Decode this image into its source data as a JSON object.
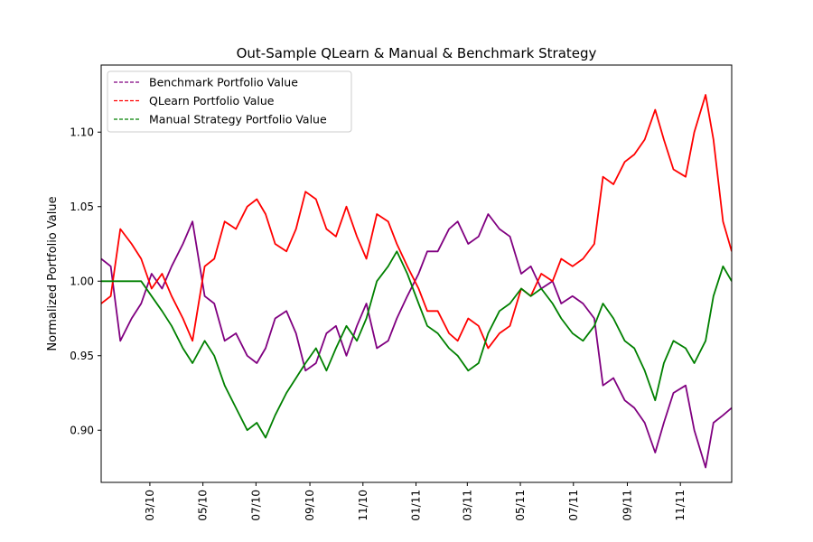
{
  "chart_data": {
    "type": "line",
    "title": "Out-Sample QLearn & Manual & Benchmark Strategy",
    "xlabel": "",
    "ylabel": "Normalized Portfolio Value",
    "xlim": [
      "2010-01-04",
      "2011-12-30"
    ],
    "ylim": [
      0.865,
      1.145
    ],
    "x_ticks": [
      "2010-03-01",
      "2010-05-01",
      "2010-07-01",
      "2010-09-01",
      "2010-11-01",
      "2011-01-01",
      "2011-03-01",
      "2011-05-01",
      "2011-07-01",
      "2011-09-01",
      "2011-11-01"
    ],
    "x_tick_labels": [
      "03/10",
      "05/10",
      "07/10",
      "09/10",
      "11/10",
      "01/11",
      "03/11",
      "05/11",
      "07/11",
      "09/11",
      "11/11"
    ],
    "y_ticks": [
      0.9,
      0.95,
      1.0,
      1.05,
      1.1
    ],
    "y_tick_labels": [
      "0.90",
      "0.95",
      "1.00",
      "1.05",
      "1.10"
    ],
    "grid": false,
    "legend_position": "top-left",
    "series": [
      {
        "name": "Benchmark Portfolio Value",
        "color": "#800080",
        "legend_style": "dashed",
        "points": [
          [
            "2010-01-04",
            1.015
          ],
          [
            "2010-01-15",
            1.01
          ],
          [
            "2010-01-26",
            0.96
          ],
          [
            "2010-02-08",
            0.975
          ],
          [
            "2010-02-19",
            0.985
          ],
          [
            "2010-03-03",
            1.005
          ],
          [
            "2010-03-15",
            0.995
          ],
          [
            "2010-03-26",
            1.01
          ],
          [
            "2010-04-08",
            1.025
          ],
          [
            "2010-04-19",
            1.04
          ],
          [
            "2010-05-03",
            0.99
          ],
          [
            "2010-05-14",
            0.985
          ],
          [
            "2010-05-26",
            0.96
          ],
          [
            "2010-06-08",
            0.965
          ],
          [
            "2010-06-21",
            0.95
          ],
          [
            "2010-07-02",
            0.945
          ],
          [
            "2010-07-12",
            0.955
          ],
          [
            "2010-07-23",
            0.975
          ],
          [
            "2010-08-05",
            0.98
          ],
          [
            "2010-08-16",
            0.965
          ],
          [
            "2010-08-27",
            0.94
          ],
          [
            "2010-09-08",
            0.945
          ],
          [
            "2010-09-20",
            0.965
          ],
          [
            "2010-10-01",
            0.97
          ],
          [
            "2010-10-13",
            0.95
          ],
          [
            "2010-10-25",
            0.97
          ],
          [
            "2010-11-05",
            0.985
          ],
          [
            "2010-11-17",
            0.955
          ],
          [
            "2010-11-30",
            0.96
          ],
          [
            "2010-12-10",
            0.975
          ],
          [
            "2010-12-22",
            0.99
          ],
          [
            "2011-01-04",
            1.005
          ],
          [
            "2011-01-14",
            1.02
          ],
          [
            "2011-01-26",
            1.02
          ],
          [
            "2011-02-08",
            1.035
          ],
          [
            "2011-02-18",
            1.04
          ],
          [
            "2011-03-02",
            1.025
          ],
          [
            "2011-03-14",
            1.03
          ],
          [
            "2011-03-25",
            1.045
          ],
          [
            "2011-04-07",
            1.035
          ],
          [
            "2011-04-19",
            1.03
          ],
          [
            "2011-05-02",
            1.005
          ],
          [
            "2011-05-13",
            1.01
          ],
          [
            "2011-05-25",
            0.995
          ],
          [
            "2011-06-07",
            1.0
          ],
          [
            "2011-06-17",
            0.985
          ],
          [
            "2011-06-30",
            0.99
          ],
          [
            "2011-07-12",
            0.985
          ],
          [
            "2011-07-25",
            0.975
          ],
          [
            "2011-08-04",
            0.93
          ],
          [
            "2011-08-16",
            0.935
          ],
          [
            "2011-08-29",
            0.92
          ],
          [
            "2011-09-09",
            0.915
          ],
          [
            "2011-09-21",
            0.905
          ],
          [
            "2011-10-03",
            0.885
          ],
          [
            "2011-10-13",
            0.905
          ],
          [
            "2011-10-24",
            0.925
          ],
          [
            "2011-11-07",
            0.93
          ],
          [
            "2011-11-17",
            0.9
          ],
          [
            "2011-11-30",
            0.875
          ],
          [
            "2011-12-09",
            0.905
          ],
          [
            "2011-12-20",
            0.91
          ],
          [
            "2011-12-30",
            0.915
          ]
        ]
      },
      {
        "name": "QLearn Portfolio Value",
        "color": "#ff0000",
        "legend_style": "dashed",
        "points": [
          [
            "2010-01-04",
            0.985
          ],
          [
            "2010-01-15",
            0.99
          ],
          [
            "2010-01-26",
            1.035
          ],
          [
            "2010-02-08",
            1.025
          ],
          [
            "2010-02-19",
            1.015
          ],
          [
            "2010-03-03",
            0.995
          ],
          [
            "2010-03-15",
            1.005
          ],
          [
            "2010-03-26",
            0.99
          ],
          [
            "2010-04-08",
            0.975
          ],
          [
            "2010-04-19",
            0.96
          ],
          [
            "2010-05-03",
            1.01
          ],
          [
            "2010-05-14",
            1.015
          ],
          [
            "2010-05-26",
            1.04
          ],
          [
            "2010-06-08",
            1.035
          ],
          [
            "2010-06-21",
            1.05
          ],
          [
            "2010-07-02",
            1.055
          ],
          [
            "2010-07-12",
            1.045
          ],
          [
            "2010-07-23",
            1.025
          ],
          [
            "2010-08-05",
            1.02
          ],
          [
            "2010-08-16",
            1.035
          ],
          [
            "2010-08-27",
            1.06
          ],
          [
            "2010-09-08",
            1.055
          ],
          [
            "2010-09-20",
            1.035
          ],
          [
            "2010-10-01",
            1.03
          ],
          [
            "2010-10-13",
            1.05
          ],
          [
            "2010-10-25",
            1.03
          ],
          [
            "2010-11-05",
            1.015
          ],
          [
            "2010-11-17",
            1.045
          ],
          [
            "2010-11-30",
            1.04
          ],
          [
            "2010-12-10",
            1.025
          ],
          [
            "2010-12-22",
            1.01
          ],
          [
            "2011-01-04",
            0.995
          ],
          [
            "2011-01-14",
            0.98
          ],
          [
            "2011-01-26",
            0.98
          ],
          [
            "2011-02-08",
            0.965
          ],
          [
            "2011-02-18",
            0.96
          ],
          [
            "2011-03-02",
            0.975
          ],
          [
            "2011-03-14",
            0.97
          ],
          [
            "2011-03-25",
            0.955
          ],
          [
            "2011-04-07",
            0.965
          ],
          [
            "2011-04-19",
            0.97
          ],
          [
            "2011-05-02",
            0.995
          ],
          [
            "2011-05-13",
            0.99
          ],
          [
            "2011-05-25",
            1.005
          ],
          [
            "2011-06-07",
            1.0
          ],
          [
            "2011-06-17",
            1.015
          ],
          [
            "2011-06-30",
            1.01
          ],
          [
            "2011-07-12",
            1.015
          ],
          [
            "2011-07-25",
            1.025
          ],
          [
            "2011-08-04",
            1.07
          ],
          [
            "2011-08-16",
            1.065
          ],
          [
            "2011-08-29",
            1.08
          ],
          [
            "2011-09-09",
            1.085
          ],
          [
            "2011-09-21",
            1.095
          ],
          [
            "2011-10-03",
            1.115
          ],
          [
            "2011-10-13",
            1.095
          ],
          [
            "2011-10-24",
            1.075
          ],
          [
            "2011-11-07",
            1.07
          ],
          [
            "2011-11-17",
            1.1
          ],
          [
            "2011-11-30",
            1.125
          ],
          [
            "2011-12-09",
            1.095
          ],
          [
            "2011-12-20",
            1.04
          ],
          [
            "2011-12-30",
            1.02
          ]
        ]
      },
      {
        "name": "Manual Strategy Portfolio Value",
        "color": "#008000",
        "legend_style": "dashed",
        "points": [
          [
            "2010-01-04",
            1.0
          ],
          [
            "2010-01-15",
            1.0
          ],
          [
            "2010-01-26",
            1.0
          ],
          [
            "2010-02-08",
            1.0
          ],
          [
            "2010-02-19",
            1.0
          ],
          [
            "2010-03-03",
            0.99
          ],
          [
            "2010-03-15",
            0.98
          ],
          [
            "2010-03-26",
            0.97
          ],
          [
            "2010-04-08",
            0.955
          ],
          [
            "2010-04-19",
            0.945
          ],
          [
            "2010-05-03",
            0.96
          ],
          [
            "2010-05-14",
            0.95
          ],
          [
            "2010-05-26",
            0.93
          ],
          [
            "2010-06-08",
            0.915
          ],
          [
            "2010-06-21",
            0.9
          ],
          [
            "2010-07-02",
            0.905
          ],
          [
            "2010-07-12",
            0.895
          ],
          [
            "2010-07-23",
            0.91
          ],
          [
            "2010-08-05",
            0.925
          ],
          [
            "2010-08-16",
            0.935
          ],
          [
            "2010-08-27",
            0.945
          ],
          [
            "2010-09-08",
            0.955
          ],
          [
            "2010-09-20",
            0.94
          ],
          [
            "2010-10-01",
            0.955
          ],
          [
            "2010-10-13",
            0.97
          ],
          [
            "2010-10-25",
            0.96
          ],
          [
            "2010-11-05",
            0.975
          ],
          [
            "2010-11-17",
            1.0
          ],
          [
            "2010-11-30",
            1.01
          ],
          [
            "2010-12-10",
            1.02
          ],
          [
            "2010-12-22",
            1.005
          ],
          [
            "2011-01-04",
            0.985
          ],
          [
            "2011-01-14",
            0.97
          ],
          [
            "2011-01-26",
            0.965
          ],
          [
            "2011-02-08",
            0.955
          ],
          [
            "2011-02-18",
            0.95
          ],
          [
            "2011-03-02",
            0.94
          ],
          [
            "2011-03-14",
            0.945
          ],
          [
            "2011-03-25",
            0.965
          ],
          [
            "2011-04-07",
            0.98
          ],
          [
            "2011-04-19",
            0.985
          ],
          [
            "2011-05-02",
            0.995
          ],
          [
            "2011-05-13",
            0.99
          ],
          [
            "2011-05-25",
            0.995
          ],
          [
            "2011-06-07",
            0.985
          ],
          [
            "2011-06-17",
            0.975
          ],
          [
            "2011-06-30",
            0.965
          ],
          [
            "2011-07-12",
            0.96
          ],
          [
            "2011-07-25",
            0.97
          ],
          [
            "2011-08-04",
            0.985
          ],
          [
            "2011-08-16",
            0.975
          ],
          [
            "2011-08-29",
            0.96
          ],
          [
            "2011-09-09",
            0.955
          ],
          [
            "2011-09-21",
            0.94
          ],
          [
            "2011-10-03",
            0.92
          ],
          [
            "2011-10-13",
            0.945
          ],
          [
            "2011-10-24",
            0.96
          ],
          [
            "2011-11-07",
            0.955
          ],
          [
            "2011-11-17",
            0.945
          ],
          [
            "2011-11-30",
            0.96
          ],
          [
            "2011-12-09",
            0.99
          ],
          [
            "2011-12-20",
            1.01
          ],
          [
            "2011-12-30",
            1.0
          ]
        ]
      }
    ]
  }
}
